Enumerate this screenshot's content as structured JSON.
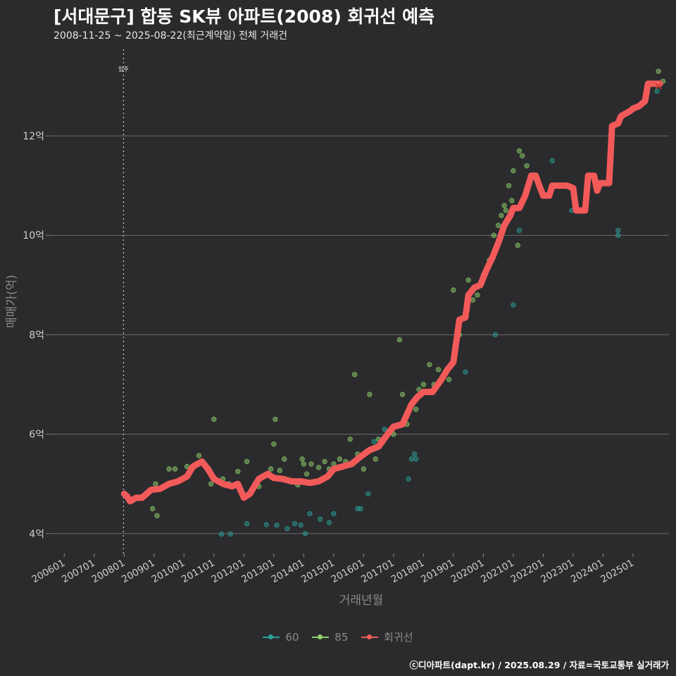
{
  "title": "[서대문구] 합동 SK뷰 아파트(2008) 회귀선 예측",
  "subtitle": "2008-11-25 ~ 2025-08-22(최근계약일) 전체 거래건",
  "footer": "ⓒ디아파트(dapt.kr) / 2025.08.29 / 자료=국토교통부 실거래가",
  "colors": {
    "bg": "#2b2b2d",
    "grid": "#6a6a6a",
    "s60": "#2aa198",
    "s85": "#8fd16b",
    "trend": "#f25a5a",
    "move_in": "#bbbbbb"
  },
  "chart_data": {
    "type": "scatter",
    "xlabel": "거래년월",
    "ylabel": "매매가(억)",
    "xlim": [
      2005.5,
      2026.2
    ],
    "ylim": [
      3.6,
      13.8
    ],
    "x_ticks": [
      {
        "label": "200601",
        "x": 2006.0
      },
      {
        "label": "200701",
        "x": 2007.0
      },
      {
        "label": "200801",
        "x": 2008.0
      },
      {
        "label": "200901",
        "x": 2009.0
      },
      {
        "label": "201001",
        "x": 2010.0
      },
      {
        "label": "201101",
        "x": 2011.0
      },
      {
        "label": "201201",
        "x": 2012.0
      },
      {
        "label": "201301",
        "x": 2013.0
      },
      {
        "label": "201401",
        "x": 2014.0
      },
      {
        "label": "201501",
        "x": 2015.0
      },
      {
        "label": "201601",
        "x": 2016.0
      },
      {
        "label": "201701",
        "x": 2017.0
      },
      {
        "label": "201801",
        "x": 2018.0
      },
      {
        "label": "201901",
        "x": 2019.0
      },
      {
        "label": "202001",
        "x": 2020.0
      },
      {
        "label": "202101",
        "x": 2021.0
      },
      {
        "label": "202201",
        "x": 2022.0
      },
      {
        "label": "202301",
        "x": 2023.0
      },
      {
        "label": "202401",
        "x": 2024.0
      },
      {
        "label": "202501",
        "x": 2025.0
      }
    ],
    "y_ticks": [
      {
        "label": "4억",
        "y": 4
      },
      {
        "label": "6억",
        "y": 6
      },
      {
        "label": "8억",
        "y": 8
      },
      {
        "label": "10억",
        "y": 10
      },
      {
        "label": "12억",
        "y": 12
      }
    ],
    "move_in": {
      "x": 2007.98,
      "label": "입주"
    },
    "legend": [
      {
        "name": "60",
        "kind": "s60"
      },
      {
        "name": "85",
        "kind": "s85"
      },
      {
        "name": "회귀선",
        "kind": "trend"
      }
    ],
    "series": [
      {
        "name": "60",
        "points": [
          [
            2011.25,
            3.99
          ],
          [
            2011.55,
            3.99
          ],
          [
            2012.1,
            4.2
          ],
          [
            2012.75,
            4.18
          ],
          [
            2013.1,
            4.17
          ],
          [
            2013.45,
            4.1
          ],
          [
            2013.7,
            4.2
          ],
          [
            2013.9,
            4.17
          ],
          [
            2014.05,
            4.0
          ],
          [
            2014.2,
            4.4
          ],
          [
            2014.55,
            4.29
          ],
          [
            2014.85,
            4.22
          ],
          [
            2015.0,
            4.4
          ],
          [
            2015.8,
            4.5
          ],
          [
            2015.9,
            4.5
          ],
          [
            2016.15,
            4.8
          ],
          [
            2016.35,
            5.85
          ],
          [
            2016.55,
            5.8
          ],
          [
            2016.7,
            6.1
          ],
          [
            2017.5,
            5.1
          ],
          [
            2017.6,
            5.5
          ],
          [
            2017.7,
            5.6
          ],
          [
            2017.75,
            5.5
          ],
          [
            2019.4,
            7.25
          ],
          [
            2020.4,
            8.0
          ],
          [
            2021.0,
            8.6
          ],
          [
            2021.2,
            10.1
          ],
          [
            2022.3,
            11.5
          ],
          [
            2022.95,
            10.5
          ],
          [
            2024.5,
            10.0
          ],
          [
            2024.5,
            10.1
          ],
          [
            2025.8,
            12.9
          ]
        ]
      },
      {
        "name": "85",
        "points": [
          [
            2008.95,
            4.5
          ],
          [
            2009.1,
            4.36
          ],
          [
            2009.05,
            5.0
          ],
          [
            2009.5,
            5.3
          ],
          [
            2009.7,
            5.3
          ],
          [
            2010.1,
            5.35
          ],
          [
            2010.5,
            5.57
          ],
          [
            2010.9,
            5.0
          ],
          [
            2011.0,
            6.3
          ],
          [
            2011.3,
            5.1
          ],
          [
            2011.5,
            5.0
          ],
          [
            2011.8,
            5.25
          ],
          [
            2012.1,
            5.45
          ],
          [
            2012.5,
            4.95
          ],
          [
            2012.9,
            5.3
          ],
          [
            2013.05,
            6.3
          ],
          [
            2013.0,
            5.8
          ],
          [
            2013.2,
            5.27
          ],
          [
            2013.35,
            5.5
          ],
          [
            2013.6,
            5.05
          ],
          [
            2013.8,
            4.98
          ],
          [
            2013.95,
            5.5
          ],
          [
            2014.0,
            5.4
          ],
          [
            2014.1,
            5.2
          ],
          [
            2014.25,
            5.4
          ],
          [
            2014.5,
            5.33
          ],
          [
            2014.7,
            5.45
          ],
          [
            2014.85,
            5.3
          ],
          [
            2015.0,
            5.4
          ],
          [
            2015.2,
            5.5
          ],
          [
            2015.4,
            5.45
          ],
          [
            2015.55,
            5.9
          ],
          [
            2015.7,
            7.2
          ],
          [
            2015.8,
            5.6
          ],
          [
            2016.0,
            5.3
          ],
          [
            2016.2,
            6.8
          ],
          [
            2016.4,
            5.5
          ],
          [
            2016.5,
            5.9
          ],
          [
            2016.65,
            5.85
          ],
          [
            2017.0,
            6.0
          ],
          [
            2017.2,
            7.9
          ],
          [
            2017.3,
            6.8
          ],
          [
            2017.45,
            6.2
          ],
          [
            2017.75,
            6.5
          ],
          [
            2017.85,
            6.9
          ],
          [
            2018.0,
            7.0
          ],
          [
            2018.2,
            7.4
          ],
          [
            2018.35,
            7.0
          ],
          [
            2018.5,
            7.3
          ],
          [
            2018.7,
            7.2
          ],
          [
            2018.85,
            7.1
          ],
          [
            2019.0,
            8.9
          ],
          [
            2019.2,
            8.0
          ],
          [
            2019.5,
            9.1
          ],
          [
            2019.65,
            8.7
          ],
          [
            2019.8,
            8.8
          ],
          [
            2020.0,
            9.2
          ],
          [
            2020.1,
            9.3
          ],
          [
            2020.2,
            9.5
          ],
          [
            2020.35,
            10.0
          ],
          [
            2020.5,
            10.2
          ],
          [
            2020.7,
            10.6
          ],
          [
            2020.85,
            11.0
          ],
          [
            2021.0,
            11.3
          ],
          [
            2021.2,
            11.7
          ],
          [
            2021.3,
            11.6
          ],
          [
            2021.45,
            11.4
          ],
          [
            2020.6,
            10.4
          ],
          [
            2020.75,
            10.5
          ],
          [
            2020.95,
            10.7
          ],
          [
            2021.15,
            9.8
          ],
          [
            2025.85,
            13.3
          ],
          [
            2026.0,
            13.1
          ]
        ]
      }
    ],
    "trend": [
      [
        2008.0,
        4.8
      ],
      [
        2008.1,
        4.75
      ],
      [
        2008.2,
        4.65
      ],
      [
        2008.4,
        4.72
      ],
      [
        2008.6,
        4.72
      ],
      [
        2008.9,
        4.88
      ],
      [
        2009.2,
        4.9
      ],
      [
        2009.5,
        5.0
      ],
      [
        2009.8,
        5.05
      ],
      [
        2010.1,
        5.15
      ],
      [
        2010.3,
        5.35
      ],
      [
        2010.6,
        5.45
      ],
      [
        2010.8,
        5.3
      ],
      [
        2011.0,
        5.1
      ],
      [
        2011.3,
        5.0
      ],
      [
        2011.6,
        4.95
      ],
      [
        2011.8,
        5.0
      ],
      [
        2012.0,
        4.72
      ],
      [
        2012.2,
        4.8
      ],
      [
        2012.5,
        5.1
      ],
      [
        2012.8,
        5.2
      ],
      [
        2013.0,
        5.12
      ],
      [
        2013.3,
        5.1
      ],
      [
        2013.6,
        5.05
      ],
      [
        2013.9,
        5.05
      ],
      [
        2014.2,
        5.02
      ],
      [
        2014.5,
        5.05
      ],
      [
        2014.8,
        5.15
      ],
      [
        2015.0,
        5.3
      ],
      [
        2015.3,
        5.35
      ],
      [
        2015.6,
        5.4
      ],
      [
        2015.9,
        5.55
      ],
      [
        2016.2,
        5.68
      ],
      [
        2016.5,
        5.75
      ],
      [
        2016.8,
        6.0
      ],
      [
        2017.0,
        6.15
      ],
      [
        2017.3,
        6.2
      ],
      [
        2017.6,
        6.6
      ],
      [
        2017.8,
        6.75
      ],
      [
        2018.0,
        6.85
      ],
      [
        2018.3,
        6.85
      ],
      [
        2018.6,
        7.1
      ],
      [
        2018.8,
        7.3
      ],
      [
        2019.0,
        7.45
      ],
      [
        2019.2,
        8.3
      ],
      [
        2019.4,
        8.35
      ],
      [
        2019.5,
        8.8
      ],
      [
        2019.7,
        8.95
      ],
      [
        2019.9,
        9.0
      ],
      [
        2020.1,
        9.3
      ],
      [
        2020.3,
        9.55
      ],
      [
        2020.5,
        9.85
      ],
      [
        2020.7,
        10.2
      ],
      [
        2020.9,
        10.4
      ],
      [
        2021.0,
        10.55
      ],
      [
        2021.2,
        10.55
      ],
      [
        2021.4,
        10.8
      ],
      [
        2021.6,
        11.2
      ],
      [
        2021.75,
        11.2
      ],
      [
        2021.9,
        10.95
      ],
      [
        2022.0,
        10.8
      ],
      [
        2022.2,
        10.8
      ],
      [
        2022.3,
        11.0
      ],
      [
        2022.8,
        11.0
      ],
      [
        2023.0,
        10.95
      ],
      [
        2023.1,
        10.5
      ],
      [
        2023.4,
        10.5
      ],
      [
        2023.5,
        11.2
      ],
      [
        2023.7,
        11.2
      ],
      [
        2023.8,
        10.9
      ],
      [
        2023.9,
        11.05
      ],
      [
        2024.2,
        11.05
      ],
      [
        2024.3,
        12.2
      ],
      [
        2024.5,
        12.25
      ],
      [
        2024.6,
        12.4
      ],
      [
        2024.9,
        12.5
      ],
      [
        2025.0,
        12.55
      ],
      [
        2025.2,
        12.6
      ],
      [
        2025.4,
        12.7
      ],
      [
        2025.5,
        13.05
      ],
      [
        2025.9,
        13.05
      ]
    ],
    "prediction_marker": [
      2025.85,
      13.0
    ]
  }
}
